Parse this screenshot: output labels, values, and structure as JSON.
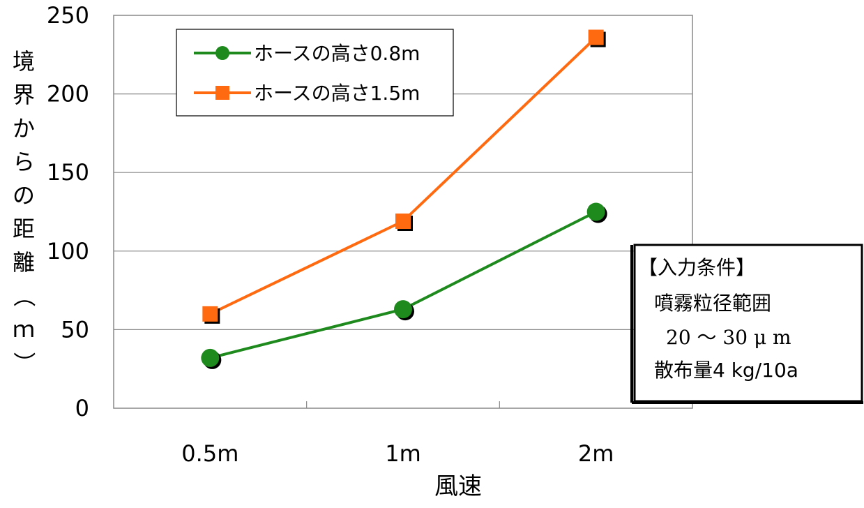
{
  "chart_data": {
    "type": "line",
    "categories": [
      "0.5m",
      "1m",
      "2m"
    ],
    "xlabel": "風速",
    "ylabel": "境界からの距離（ｍ）",
    "ylim": [
      0,
      250
    ],
    "yticks": [
      0,
      50,
      100,
      150,
      200,
      250
    ],
    "grid": "horizontal",
    "legend_position": "top-left",
    "series": [
      {
        "name": "ホースの高さ0.8m",
        "values": [
          32,
          63,
          125
        ],
        "color": "#1e8a1e",
        "marker": "circle"
      },
      {
        "name": "ホースの高さ1.5m",
        "values": [
          60,
          119,
          236
        ],
        "color": "#ff6a10",
        "marker": "square"
      }
    ],
    "annotation": {
      "lines": [
        "【入力条件】",
        "噴霧粒径範囲",
        "20 〜 30 μ m",
        "散布量4 kg/10a"
      ]
    }
  }
}
